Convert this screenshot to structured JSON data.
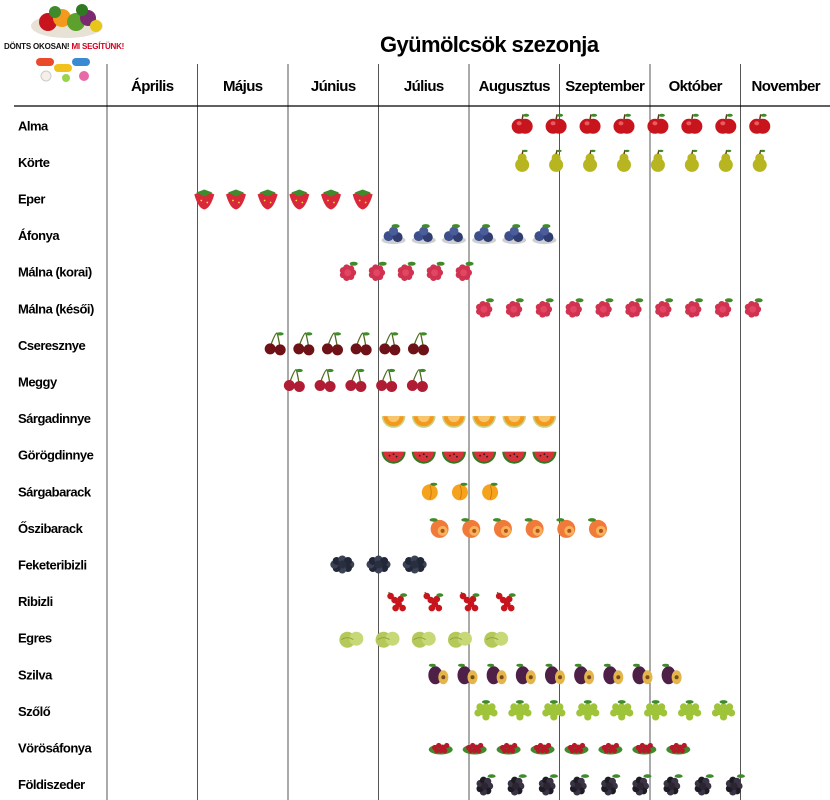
{
  "logo": {
    "text_left": "DÖNTS OKOSAN!",
    "text_right": "MI SEGÍTÜNK!"
  },
  "title": "Gyümölcsök szezonja",
  "chart_data": {
    "type": "table",
    "title": "Gyümölcsök szezonja",
    "months": [
      "Április",
      "Május",
      "Június",
      "Július",
      "Augusztus",
      "Szeptember",
      "Október",
      "November"
    ],
    "rows": [
      {
        "fruit": "Alma",
        "icon": "apple-icon",
        "icon_count": 8,
        "start": 4.4,
        "end": 7.4
      },
      {
        "fruit": "Körte",
        "icon": "pear-icon",
        "icon_count": 8,
        "start": 4.4,
        "end": 7.4
      },
      {
        "fruit": "Eper",
        "icon": "strawberry-icon",
        "icon_count": 6,
        "start": 0.9,
        "end": 3.0
      },
      {
        "fruit": "Áfonya",
        "icon": "blueberry-icon",
        "icon_count": 6,
        "start": 3.0,
        "end": 5.0
      },
      {
        "fruit": "Málna (korai)",
        "icon": "raspberry-icon",
        "icon_count": 5,
        "start": 2.5,
        "end": 4.1
      },
      {
        "fruit": "Málna (késői)",
        "icon": "raspberry-icon",
        "icon_count": 10,
        "start": 4.0,
        "end": 7.3
      },
      {
        "fruit": "Cseresznye",
        "icon": "cherry-icon",
        "icon_count": 6,
        "start": 1.7,
        "end": 3.6
      },
      {
        "fruit": "Meggy",
        "icon": "sour-cherry-icon",
        "icon_count": 5,
        "start": 1.9,
        "end": 3.6
      },
      {
        "fruit": "Sárgadinnye",
        "icon": "cantaloupe-icon",
        "icon_count": 6,
        "start": 3.0,
        "end": 5.0
      },
      {
        "fruit": "Görögdinnye",
        "icon": "watermelon-icon",
        "icon_count": 6,
        "start": 3.0,
        "end": 5.0
      },
      {
        "fruit": "Sárgabarack",
        "icon": "apricot-icon",
        "icon_count": 3,
        "start": 3.4,
        "end": 4.4
      },
      {
        "fruit": "Őszibarack",
        "icon": "peach-icon",
        "icon_count": 6,
        "start": 3.5,
        "end": 5.6
      },
      {
        "fruit": "Feketeribizli",
        "icon": "blackcurrant-icon",
        "icon_count": 3,
        "start": 2.4,
        "end": 3.6
      },
      {
        "fruit": "Ribizli",
        "icon": "redcurrant-icon",
        "icon_count": 4,
        "start": 3.0,
        "end": 4.6
      },
      {
        "fruit": "Egres",
        "icon": "gooseberry-icon",
        "icon_count": 5,
        "start": 2.5,
        "end": 4.5
      },
      {
        "fruit": "Szilva",
        "icon": "plum-icon",
        "icon_count": 9,
        "start": 3.5,
        "end": 6.4
      },
      {
        "fruit": "Szőlő",
        "icon": "grape-icon",
        "icon_count": 8,
        "start": 4.0,
        "end": 7.0
      },
      {
        "fruit": "Vörösáfonya",
        "icon": "lingonberry-icon",
        "icon_count": 8,
        "start": 3.5,
        "end": 6.5
      },
      {
        "fruit": "Földiszeder",
        "icon": "blackberry-icon",
        "icon_count": 9,
        "start": 4.0,
        "end": 7.1
      }
    ]
  },
  "colors": {
    "grid": "#555555",
    "divider": "#000000",
    "apple-icon": "#c8141c",
    "pear-icon": "#b7b520",
    "strawberry-icon": "#d9283a",
    "blueberry-icon": "#3d4f8a",
    "raspberry-icon": "#d0324f",
    "cherry-icon": "#6f1217",
    "sour-cherry-icon": "#b01c34",
    "cantaloupe-icon": "#f39a1c",
    "watermelon-icon": "#d8323b",
    "apricot-icon": "#f5a31c",
    "peach-icon": "#f07a3a",
    "blackcurrant-icon": "#232838",
    "redcurrant-icon": "#c8141c",
    "gooseberry-icon": "#b5c95a",
    "plum-icon": "#4e1f47",
    "grape-icon": "#9fc43a",
    "lingonberry-icon": "#b8182a",
    "blackberry-icon": "#1e1b22",
    "leaf": "#3f8a2a"
  }
}
